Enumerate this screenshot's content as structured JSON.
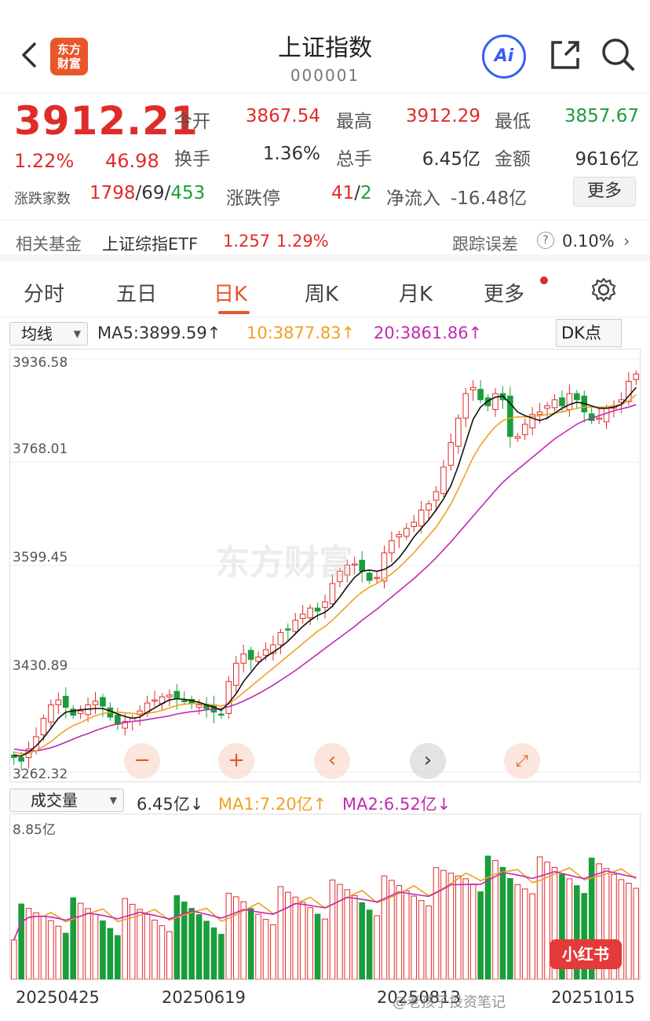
{
  "header": {
    "logo_text": "东方\n财富",
    "title": "上证指数",
    "code": "000001",
    "ai_label": "Ai"
  },
  "quote": {
    "price": "3912.21",
    "change_pct": "1.22%",
    "change": "46.98",
    "open_label": "今开",
    "open": "3867.54",
    "high_label": "最高",
    "high": "3912.29",
    "low_label": "最低",
    "low": "3857.67",
    "turnover_label": "换手",
    "turnover": "1.36%",
    "volume_label": "总手",
    "volume": "6.45亿",
    "amount_label": "金额",
    "amount": "9616亿",
    "breadth_label": "涨跌家数",
    "breadth_up": "1798",
    "breadth_flat": "69",
    "breadth_down": "453",
    "limit_label": "涨跌停",
    "limit_up": "41",
    "limit_down": "2",
    "netflow_label": "净流入",
    "netflow": "-16.48亿",
    "more_label": "更多"
  },
  "fund": {
    "label": "相关基金",
    "name": "上证综指ETF",
    "price": "1.257",
    "pct": "1.29%",
    "track_label": "跟踪误差",
    "track_value": "0.10%"
  },
  "tabs": [
    "分时",
    "五日",
    "日K",
    "周K",
    "月K",
    "更多"
  ],
  "ma": {
    "select_label": "均线",
    "ma5": "MA5:3899.59↑",
    "ma10": "10:3877.83↑",
    "ma20": "20:3861.86↑",
    "dk_label": "DK点"
  },
  "kchart_axis": [
    "3936.58",
    "3768.01",
    "3599.45",
    "3430.89",
    "3262.32"
  ],
  "volume": {
    "select_label": "成交量",
    "value": "6.45亿↓",
    "ma1": "MA1:7.20亿↑",
    "ma2": "MA2:6.52亿↓",
    "max_label": "8.85亿"
  },
  "dates": [
    "20250425",
    "20250619",
    "20250813",
    "20251015"
  ],
  "watermark": "东方财富",
  "xhs_badge": "小红书",
  "footer_watermark": "@老孩子投资笔记",
  "colors": {
    "up": "#e02b2b",
    "down": "#1a9e3a",
    "ma5": "#111111",
    "ma10": "#f0a020",
    "ma20": "#c02ab0",
    "accent": "#e8562a"
  },
  "chart_data": {
    "type": "candlestick",
    "ylim": [
      3262.32,
      3936.58
    ],
    "close": [
      3286,
      3280,
      3300,
      3320,
      3350,
      3372,
      3380,
      3368,
      3355,
      3362,
      3372,
      3378,
      3370,
      3352,
      3340,
      3345,
      3350,
      3362,
      3375,
      3380,
      3385,
      3388,
      3382,
      3378,
      3374,
      3372,
      3366,
      3360,
      3355,
      3410,
      3440,
      3455,
      3446,
      3450,
      3462,
      3470,
      3490,
      3495,
      3510,
      3520,
      3530,
      3525,
      3540,
      3570,
      3590,
      3600,
      3602,
      3590,
      3575,
      3580,
      3620,
      3640,
      3650,
      3660,
      3670,
      3690,
      3700,
      3720,
      3760,
      3800,
      3840,
      3880,
      3890,
      3870,
      3860,
      3880,
      3870,
      3810,
      3810,
      3830,
      3846,
      3850,
      3860,
      3870,
      3860,
      3880,
      3870,
      3850,
      3836,
      3840,
      3856,
      3860,
      3870,
      3900,
      3912
    ],
    "ma5": [
      3290,
      3288,
      3295,
      3305,
      3318,
      3334,
      3350,
      3360,
      3362,
      3364,
      3365,
      3366,
      3366,
      3362,
      3357,
      3353,
      3350,
      3352,
      3360,
      3367,
      3374,
      3380,
      3382,
      3381,
      3379,
      3376,
      3372,
      3368,
      3363,
      3375,
      3390,
      3410,
      3425,
      3440,
      3450,
      3458,
      3466,
      3476,
      3488,
      3500,
      3510,
      3518,
      3523,
      3533,
      3548,
      3565,
      3580,
      3590,
      3592,
      3590,
      3593,
      3600,
      3612,
      3628,
      3646,
      3660,
      3674,
      3690,
      3708,
      3730,
      3762,
      3800,
      3838,
      3858,
      3868,
      3874,
      3876,
      3864,
      3850,
      3844,
      3840,
      3836,
      3840,
      3848,
      3856,
      3862,
      3866,
      3864,
      3860,
      3856,
      3856,
      3858,
      3862,
      3876,
      3890
    ],
    "ma10": [
      3295,
      3292,
      3293,
      3297,
      3304,
      3312,
      3322,
      3331,
      3338,
      3343,
      3349,
      3354,
      3358,
      3360,
      3360,
      3359,
      3358,
      3357,
      3358,
      3360,
      3363,
      3367,
      3371,
      3373,
      3374,
      3374,
      3373,
      3372,
      3370,
      3374,
      3382,
      3392,
      3402,
      3412,
      3422,
      3432,
      3442,
      3452,
      3462,
      3472,
      3482,
      3492,
      3500,
      3510,
      3522,
      3534,
      3546,
      3556,
      3564,
      3570,
      3578,
      3586,
      3596,
      3608,
      3620,
      3634,
      3648,
      3662,
      3680,
      3700,
      3724,
      3750,
      3776,
      3796,
      3812,
      3826,
      3836,
      3840,
      3842,
      3842,
      3843,
      3844,
      3846,
      3848,
      3850,
      3853,
      3856,
      3858,
      3858,
      3858,
      3858,
      3860,
      3862,
      3868,
      3878
    ],
    "ma20": [
      3300,
      3298,
      3297,
      3297,
      3299,
      3302,
      3306,
      3311,
      3316,
      3321,
      3325,
      3330,
      3334,
      3338,
      3341,
      3343,
      3345,
      3346,
      3348,
      3350,
      3352,
      3354,
      3357,
      3359,
      3361,
      3362,
      3364,
      3365,
      3366,
      3369,
      3373,
      3378,
      3384,
      3390,
      3397,
      3404,
      3412,
      3420,
      3428,
      3437,
      3446,
      3455,
      3464,
      3473,
      3482,
      3491,
      3500,
      3510,
      3519,
      3528,
      3538,
      3548,
      3558,
      3568,
      3578,
      3589,
      3600,
      3612,
      3625,
      3638,
      3652,
      3666,
      3680,
      3694,
      3708,
      3722,
      3735,
      3746,
      3756,
      3766,
      3776,
      3786,
      3796,
      3806,
      3814,
      3822,
      3830,
      3836,
      3840,
      3844,
      3848,
      3852,
      3855,
      3858,
      3862
    ],
    "volume_ylim": [
      0,
      8.85
    ]
  }
}
